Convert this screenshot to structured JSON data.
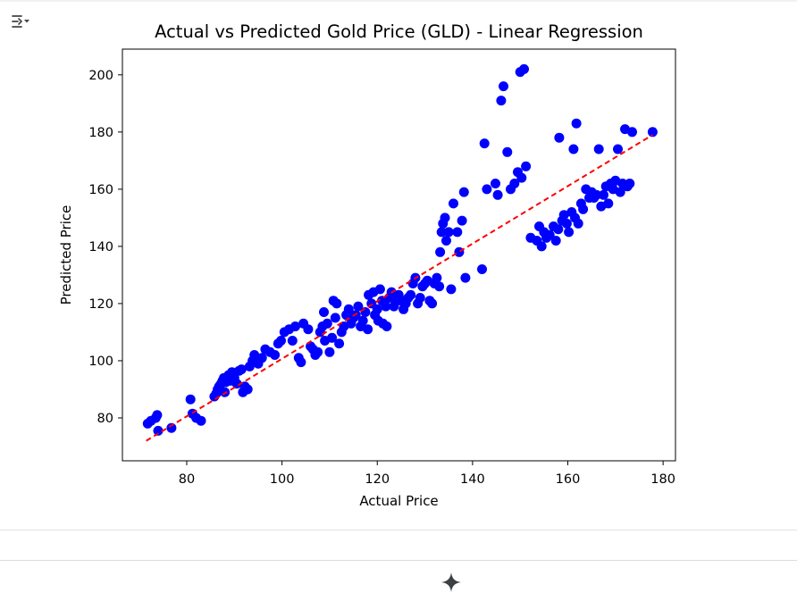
{
  "toolbar": {
    "output_toggle_icon": "output-collapse-icon"
  },
  "footer": {
    "sparkle_icon": "sparkle-icon"
  },
  "colors": {
    "points": "#0000ff",
    "fit_line": "#ff0000",
    "axes": "#000000"
  },
  "chart_data": {
    "type": "scatter",
    "title": "Actual vs Predicted Gold Price (GLD) - Linear Regression",
    "xlabel": "Actual Price",
    "ylabel": "Predicted Price",
    "xlim": [
      66.5,
      182.6
    ],
    "ylim": [
      65,
      209
    ],
    "xticks": [
      "80",
      "100",
      "120",
      "140",
      "160",
      "180"
    ],
    "yticks": [
      "80",
      "100",
      "120",
      "140",
      "160",
      "180",
      "200"
    ],
    "grid": false,
    "legend": "none",
    "reference_line": {
      "style": "dashed",
      "from": [
        71.5,
        72
      ],
      "to": [
        177.8,
        179
      ]
    },
    "series": [
      {
        "marker": "circle",
        "points": [
          [
            71.8,
            78
          ],
          [
            72.5,
            79
          ],
          [
            73.5,
            80
          ],
          [
            73.8,
            81
          ],
          [
            74.0,
            75.5
          ],
          [
            76.8,
            76.5
          ],
          [
            80.8,
            86.5
          ],
          [
            81.2,
            81.5
          ],
          [
            82.0,
            80
          ],
          [
            83.0,
            79
          ],
          [
            85.8,
            87.5
          ],
          [
            86.2,
            88.5
          ],
          [
            86.5,
            90
          ],
          [
            86.8,
            91
          ],
          [
            87.2,
            92
          ],
          [
            87.5,
            93
          ],
          [
            87.8,
            94
          ],
          [
            88.0,
            89
          ],
          [
            88.2,
            92.5
          ],
          [
            88.8,
            95
          ],
          [
            89.2,
            93
          ],
          [
            89.5,
            96
          ],
          [
            90.0,
            94
          ],
          [
            90.5,
            92
          ],
          [
            91.0,
            96.5
          ],
          [
            91.5,
            97
          ],
          [
            91.8,
            89
          ],
          [
            92.2,
            91
          ],
          [
            92.8,
            90
          ],
          [
            93.2,
            98
          ],
          [
            93.8,
            100
          ],
          [
            94.2,
            102
          ],
          [
            95.0,
            99
          ],
          [
            95.8,
            101
          ],
          [
            96.5,
            104
          ],
          [
            97.5,
            103
          ],
          [
            98.5,
            102
          ],
          [
            99.2,
            106
          ],
          [
            99.8,
            107
          ],
          [
            100.5,
            110
          ],
          [
            101.5,
            111
          ],
          [
            102.2,
            107
          ],
          [
            102.8,
            112
          ],
          [
            103.5,
            101
          ],
          [
            104.0,
            99.5
          ],
          [
            104.5,
            113
          ],
          [
            105.5,
            111
          ],
          [
            106.0,
            105
          ],
          [
            106.5,
            104
          ],
          [
            107.0,
            102
          ],
          [
            107.5,
            103
          ],
          [
            108.0,
            110
          ],
          [
            108.5,
            112
          ],
          [
            108.8,
            117
          ],
          [
            109.0,
            107
          ],
          [
            109.5,
            113
          ],
          [
            110.0,
            103
          ],
          [
            110.5,
            108
          ],
          [
            110.8,
            121
          ],
          [
            111.2,
            115
          ],
          [
            111.5,
            120
          ],
          [
            112.0,
            106
          ],
          [
            112.5,
            110
          ],
          [
            113.0,
            112
          ],
          [
            113.5,
            116
          ],
          [
            114.0,
            118
          ],
          [
            114.5,
            113
          ],
          [
            115.0,
            115
          ],
          [
            115.5,
            116
          ],
          [
            116.0,
            119
          ],
          [
            116.5,
            112
          ],
          [
            117.0,
            114
          ],
          [
            117.5,
            117
          ],
          [
            118.0,
            111
          ],
          [
            118.2,
            123
          ],
          [
            118.8,
            120
          ],
          [
            119.2,
            124
          ],
          [
            119.5,
            116
          ],
          [
            120.0,
            118
          ],
          [
            120.2,
            114
          ],
          [
            120.6,
            125
          ],
          [
            121.0,
            121
          ],
          [
            121.2,
            113
          ],
          [
            121.8,
            119
          ],
          [
            122.0,
            112
          ],
          [
            122.5,
            122
          ],
          [
            123.0,
            124
          ],
          [
            123.5,
            119
          ],
          [
            124.0,
            121
          ],
          [
            124.5,
            123
          ],
          [
            125.0,
            121
          ],
          [
            125.5,
            118
          ],
          [
            126.0,
            120
          ],
          [
            126.5,
            122
          ],
          [
            127.0,
            123
          ],
          [
            127.5,
            127
          ],
          [
            128.0,
            129
          ],
          [
            128.5,
            120
          ],
          [
            129.0,
            122
          ],
          [
            129.5,
            126
          ],
          [
            130.0,
            127
          ],
          [
            130.5,
            128
          ],
          [
            131.0,
            121
          ],
          [
            131.5,
            120
          ],
          [
            132.0,
            127
          ],
          [
            132.5,
            129
          ],
          [
            133.0,
            126
          ],
          [
            133.2,
            138
          ],
          [
            133.5,
            145
          ],
          [
            133.8,
            148
          ],
          [
            134.2,
            150
          ],
          [
            134.5,
            142
          ],
          [
            135.0,
            145
          ],
          [
            135.5,
            125
          ],
          [
            136.0,
            155
          ],
          [
            136.8,
            145
          ],
          [
            137.2,
            138
          ],
          [
            137.8,
            149
          ],
          [
            138.2,
            159
          ],
          [
            138.5,
            129
          ],
          [
            142.0,
            132
          ],
          [
            142.5,
            176
          ],
          [
            143.0,
            160
          ],
          [
            144.8,
            162
          ],
          [
            145.3,
            158
          ],
          [
            146.0,
            191
          ],
          [
            146.5,
            196
          ],
          [
            147.3,
            173
          ],
          [
            148.0,
            160
          ],
          [
            148.8,
            162
          ],
          [
            149.5,
            166
          ],
          [
            150.0,
            201
          ],
          [
            150.3,
            164
          ],
          [
            150.8,
            202
          ],
          [
            151.2,
            168
          ],
          [
            152.2,
            143
          ],
          [
            153.5,
            142
          ],
          [
            154.0,
            147
          ],
          [
            154.5,
            140
          ],
          [
            155.0,
            145
          ],
          [
            155.5,
            143
          ],
          [
            156.2,
            144
          ],
          [
            157.0,
            147
          ],
          [
            157.5,
            142
          ],
          [
            158.0,
            146
          ],
          [
            158.2,
            178
          ],
          [
            158.8,
            149
          ],
          [
            159.2,
            151
          ],
          [
            159.8,
            148
          ],
          [
            160.2,
            145
          ],
          [
            160.8,
            152
          ],
          [
            161.2,
            174
          ],
          [
            161.5,
            150
          ],
          [
            161.8,
            183
          ],
          [
            162.2,
            148
          ],
          [
            162.8,
            155
          ],
          [
            163.2,
            153
          ],
          [
            163.8,
            160
          ],
          [
            164.5,
            157
          ],
          [
            165.0,
            159
          ],
          [
            165.5,
            157
          ],
          [
            166.0,
            158
          ],
          [
            166.5,
            174
          ],
          [
            167.0,
            154
          ],
          [
            167.5,
            158
          ],
          [
            168.0,
            161
          ],
          [
            168.5,
            155
          ],
          [
            169.0,
            162
          ],
          [
            169.5,
            160
          ],
          [
            170.0,
            163
          ],
          [
            170.5,
            174
          ],
          [
            171.0,
            159
          ],
          [
            171.5,
            162
          ],
          [
            172.0,
            181
          ],
          [
            172.5,
            161
          ],
          [
            173.0,
            162
          ],
          [
            173.5,
            180
          ],
          [
            177.8,
            180
          ]
        ]
      }
    ]
  }
}
